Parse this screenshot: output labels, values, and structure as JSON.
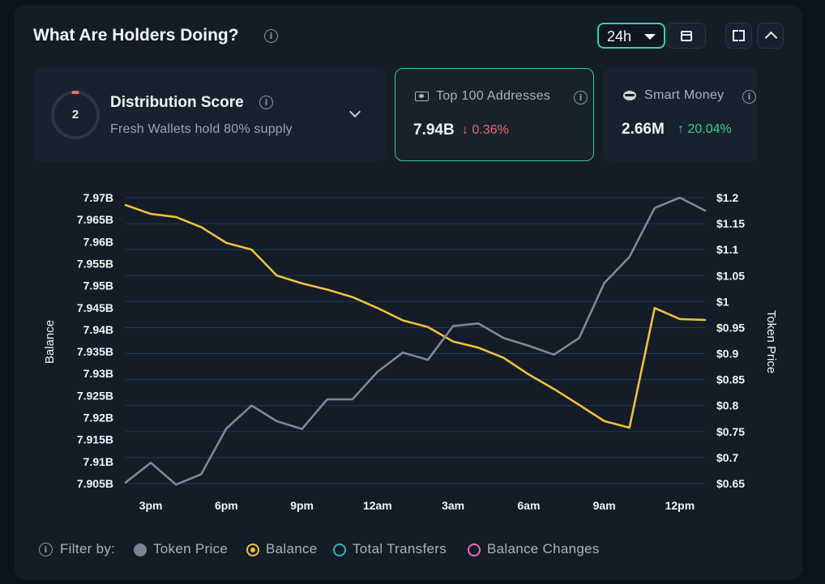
{
  "header": {
    "title": "What Are Holders Doing?",
    "range_label": "24h"
  },
  "cards": {
    "distribution": {
      "score": "2",
      "title": "Distribution Score",
      "subtitle": "Fresh Wallets hold 80% supply"
    },
    "top100": {
      "label": "Top 100 Addresses",
      "value": "7.94B",
      "change": "↓ 0.36%"
    },
    "smart_money": {
      "label": "Smart Money",
      "value": "2.66M",
      "change": "↑ 20.04%"
    }
  },
  "legend": {
    "filter_label": "Filter by:",
    "items": [
      {
        "label": "Token Price",
        "color": "#7a8592",
        "filled": true
      },
      {
        "label": "Balance",
        "color": "#f2c03c",
        "filled": true
      },
      {
        "label": "Total Transfers",
        "color": "#2fb6c0",
        "filled": false
      },
      {
        "label": "Balance Changes",
        "color": "#e86fb4",
        "filled": false
      }
    ]
  },
  "colors": {
    "balance": "#f2c03c",
    "price": "#7f8996",
    "grid": "#1d3a5c",
    "accent": "#38d39f",
    "ring_accent": "#f06a6a"
  },
  "chart_data": {
    "type": "line",
    "xlabel": "",
    "ylabel_left": "Balance",
    "ylabel_right": "Token Price",
    "x_ticks": [
      "3pm",
      "6pm",
      "9pm",
      "12am",
      "3am",
      "6am",
      "9am",
      "12pm"
    ],
    "x_tick_positions": [
      1,
      4,
      7,
      10,
      13,
      16,
      19,
      22
    ],
    "x_range": [
      0,
      23
    ],
    "y_left": {
      "range": [
        7.905,
        7.97
      ],
      "ticks": [
        "7.97B",
        "7.965B",
        "7.96B",
        "7.955B",
        "7.95B",
        "7.945B",
        "7.94B",
        "7.935B",
        "7.93B",
        "7.925B",
        "7.92B",
        "7.915B",
        "7.91B",
        "7.905B"
      ]
    },
    "y_right": {
      "range": [
        0.65,
        1.2
      ],
      "ticks": [
        "$1.2",
        "$1.15",
        "$1.1",
        "$1.05",
        "$1",
        "$0.95",
        "$0.9",
        "$0.85",
        "$0.8",
        "$0.75",
        "$0.7",
        "$0.65"
      ]
    },
    "series": [
      {
        "name": "Balance",
        "axis": "left",
        "x": [
          0,
          1,
          2,
          3,
          4,
          5,
          6,
          7,
          8,
          9,
          10,
          11,
          12,
          13,
          14,
          15,
          16,
          17,
          18,
          19,
          20,
          21,
          22,
          23
        ],
        "values": [
          7.9683,
          7.9663,
          7.9656,
          7.9633,
          7.9597,
          7.9582,
          7.9523,
          7.9505,
          7.9491,
          7.9474,
          7.9449,
          7.9421,
          7.9406,
          7.9373,
          7.9359,
          7.9336,
          7.9298,
          7.9265,
          7.9229,
          7.9192,
          7.9177,
          7.9449,
          7.9424,
          7.9422
        ]
      },
      {
        "name": "Token Price",
        "axis": "right",
        "x": [
          0,
          1,
          2,
          3,
          4,
          5,
          6,
          7,
          8,
          9,
          10,
          11,
          12,
          13,
          14,
          15,
          16,
          17,
          18,
          19,
          20,
          21,
          22,
          23
        ],
        "values": [
          0.652,
          0.69,
          0.648,
          0.668,
          0.756,
          0.8,
          0.77,
          0.755,
          0.812,
          0.812,
          0.865,
          0.902,
          0.888,
          0.953,
          0.958,
          0.93,
          0.915,
          0.898,
          0.93,
          1.036,
          1.086,
          1.18,
          1.2,
          1.175
        ]
      }
    ]
  }
}
